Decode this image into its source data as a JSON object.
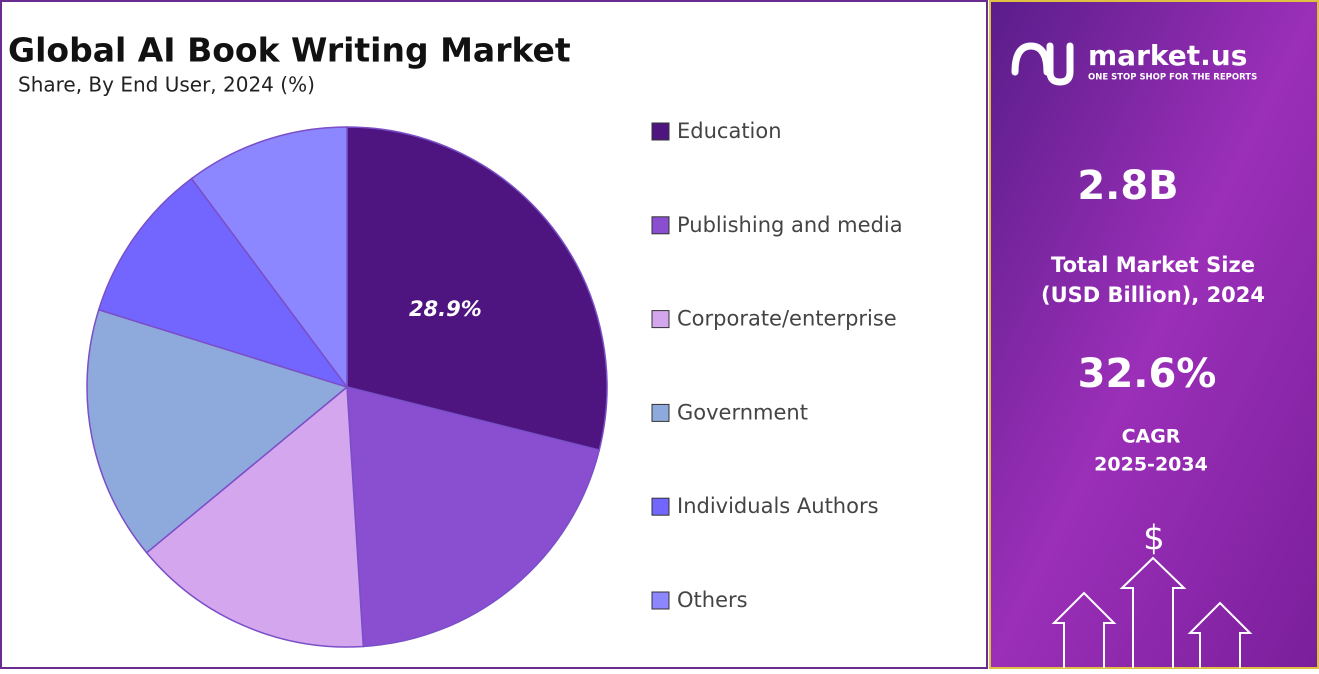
{
  "chart_data": {
    "type": "pie",
    "title": "Global AI Book Writing Market",
    "subtitle": "Share, By End User, 2024 (%)",
    "categories": [
      "Education",
      "Publishing and media",
      "Corporate/enterprise",
      "Government",
      "Individuals Authors",
      "Others"
    ],
    "values": [
      28.9,
      20.1,
      15.0,
      15.8,
      10.0,
      10.2
    ],
    "value_labels": [
      "28.9%",
      null,
      null,
      null,
      null,
      null
    ],
    "colors": [
      "#4e1580",
      "#8a4fd1",
      "#d4a6ee",
      "#8ea9db",
      "#7366ff",
      "#8c87ff"
    ],
    "legend": "right"
  },
  "sidebar": {
    "brand": "market.us",
    "tagline": "ONE STOP SHOP FOR THE REPORTS",
    "market_size": "2.8B",
    "market_size_label": [
      "Total Market Size",
      "(USD Billion), 2024"
    ],
    "cagr": "32.6%",
    "cagr_label": [
      "CAGR",
      "2025-2034"
    ],
    "icon": "$"
  }
}
